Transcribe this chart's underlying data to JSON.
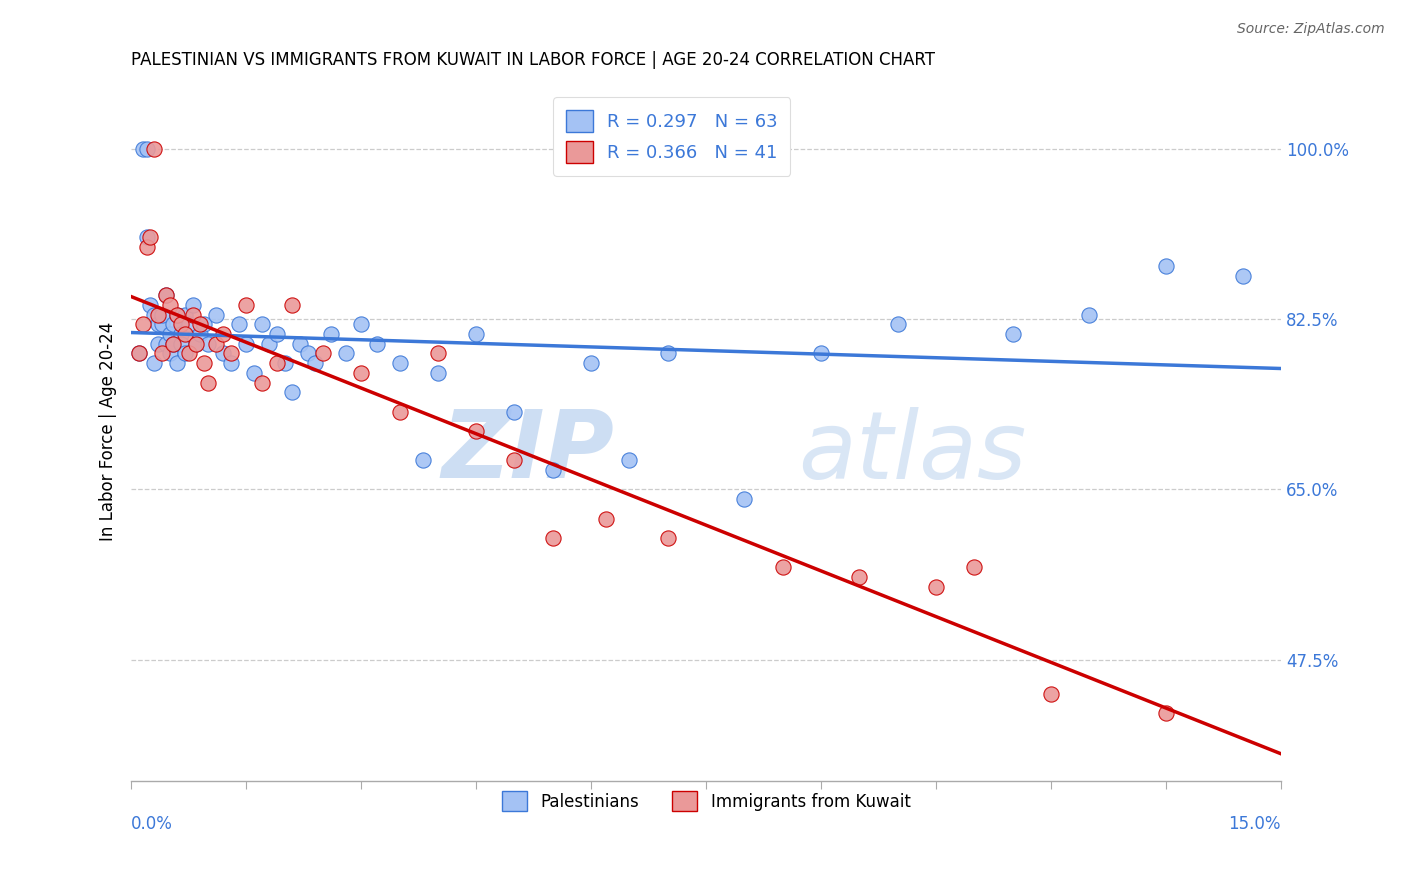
{
  "title": "PALESTINIAN VS IMMIGRANTS FROM KUWAIT IN LABOR FORCE | AGE 20-24 CORRELATION CHART",
  "source": "Source: ZipAtlas.com",
  "ylabel": "In Labor Force | Age 20-24",
  "ytick_vals": [
    47.5,
    65.0,
    82.5,
    100.0
  ],
  "ytick_labels": [
    "47.5%",
    "65.0%",
    "82.5%",
    "100.0%"
  ],
  "xmin": 0.0,
  "xmax": 15.0,
  "ymin": 35.0,
  "ymax": 107.0,
  "legend_r1": "R = 0.297",
  "legend_n1": "N = 63",
  "legend_r2": "R = 0.366",
  "legend_n2": "N = 41",
  "blue_color": "#a4c2f4",
  "pink_color": "#ea9999",
  "blue_line_color": "#3c78d8",
  "pink_line_color": "#cc0000",
  "text_color": "#3c78d8",
  "watermark_zip": "ZIP",
  "watermark_atlas": "atlas",
  "palestinians_x": [
    0.1,
    0.15,
    0.2,
    0.2,
    0.25,
    0.3,
    0.3,
    0.35,
    0.35,
    0.4,
    0.4,
    0.45,
    0.45,
    0.5,
    0.5,
    0.55,
    0.55,
    0.6,
    0.6,
    0.65,
    0.65,
    0.7,
    0.7,
    0.75,
    0.8,
    0.85,
    0.9,
    0.95,
    1.0,
    1.1,
    1.2,
    1.3,
    1.4,
    1.5,
    1.6,
    1.7,
    1.8,
    1.9,
    2.0,
    2.1,
    2.2,
    2.3,
    2.4,
    2.6,
    2.8,
    3.0,
    3.2,
    3.5,
    3.8,
    4.0,
    4.5,
    5.0,
    5.5,
    6.0,
    6.5,
    7.0,
    8.0,
    9.0,
    10.0,
    11.5,
    12.5,
    13.5,
    14.5
  ],
  "palestinians_y": [
    79.0,
    100.0,
    91.0,
    100.0,
    84.0,
    78.0,
    83.0,
    82.0,
    80.0,
    82.0,
    83.0,
    80.0,
    85.0,
    81.0,
    79.0,
    82.0,
    80.0,
    83.0,
    78.0,
    81.0,
    80.0,
    79.0,
    83.0,
    82.0,
    84.0,
    80.0,
    81.0,
    82.0,
    80.0,
    83.0,
    79.0,
    78.0,
    82.0,
    80.0,
    77.0,
    82.0,
    80.0,
    81.0,
    78.0,
    75.0,
    80.0,
    79.0,
    78.0,
    81.0,
    79.0,
    82.0,
    80.0,
    78.0,
    68.0,
    77.0,
    81.0,
    73.0,
    67.0,
    78.0,
    68.0,
    79.0,
    64.0,
    79.0,
    82.0,
    81.0,
    83.0,
    88.0,
    87.0
  ],
  "kuwait_x": [
    0.1,
    0.15,
    0.2,
    0.25,
    0.3,
    0.35,
    0.4,
    0.45,
    0.5,
    0.55,
    0.6,
    0.65,
    0.7,
    0.75,
    0.8,
    0.85,
    0.9,
    0.95,
    1.0,
    1.1,
    1.2,
    1.3,
    1.5,
    1.7,
    1.9,
    2.1,
    2.5,
    3.0,
    3.5,
    4.0,
    4.5,
    5.0,
    5.5,
    6.2,
    7.0,
    8.5,
    9.5,
    10.5,
    11.0,
    12.0,
    13.5
  ],
  "kuwait_y": [
    79.0,
    82.0,
    90.0,
    91.0,
    100.0,
    83.0,
    79.0,
    85.0,
    84.0,
    80.0,
    83.0,
    82.0,
    81.0,
    79.0,
    83.0,
    80.0,
    82.0,
    78.0,
    76.0,
    80.0,
    81.0,
    79.0,
    84.0,
    76.0,
    78.0,
    84.0,
    79.0,
    77.0,
    73.0,
    79.0,
    71.0,
    68.0,
    60.0,
    62.0,
    60.0,
    57.0,
    56.0,
    55.0,
    57.0,
    44.0,
    42.0
  ]
}
